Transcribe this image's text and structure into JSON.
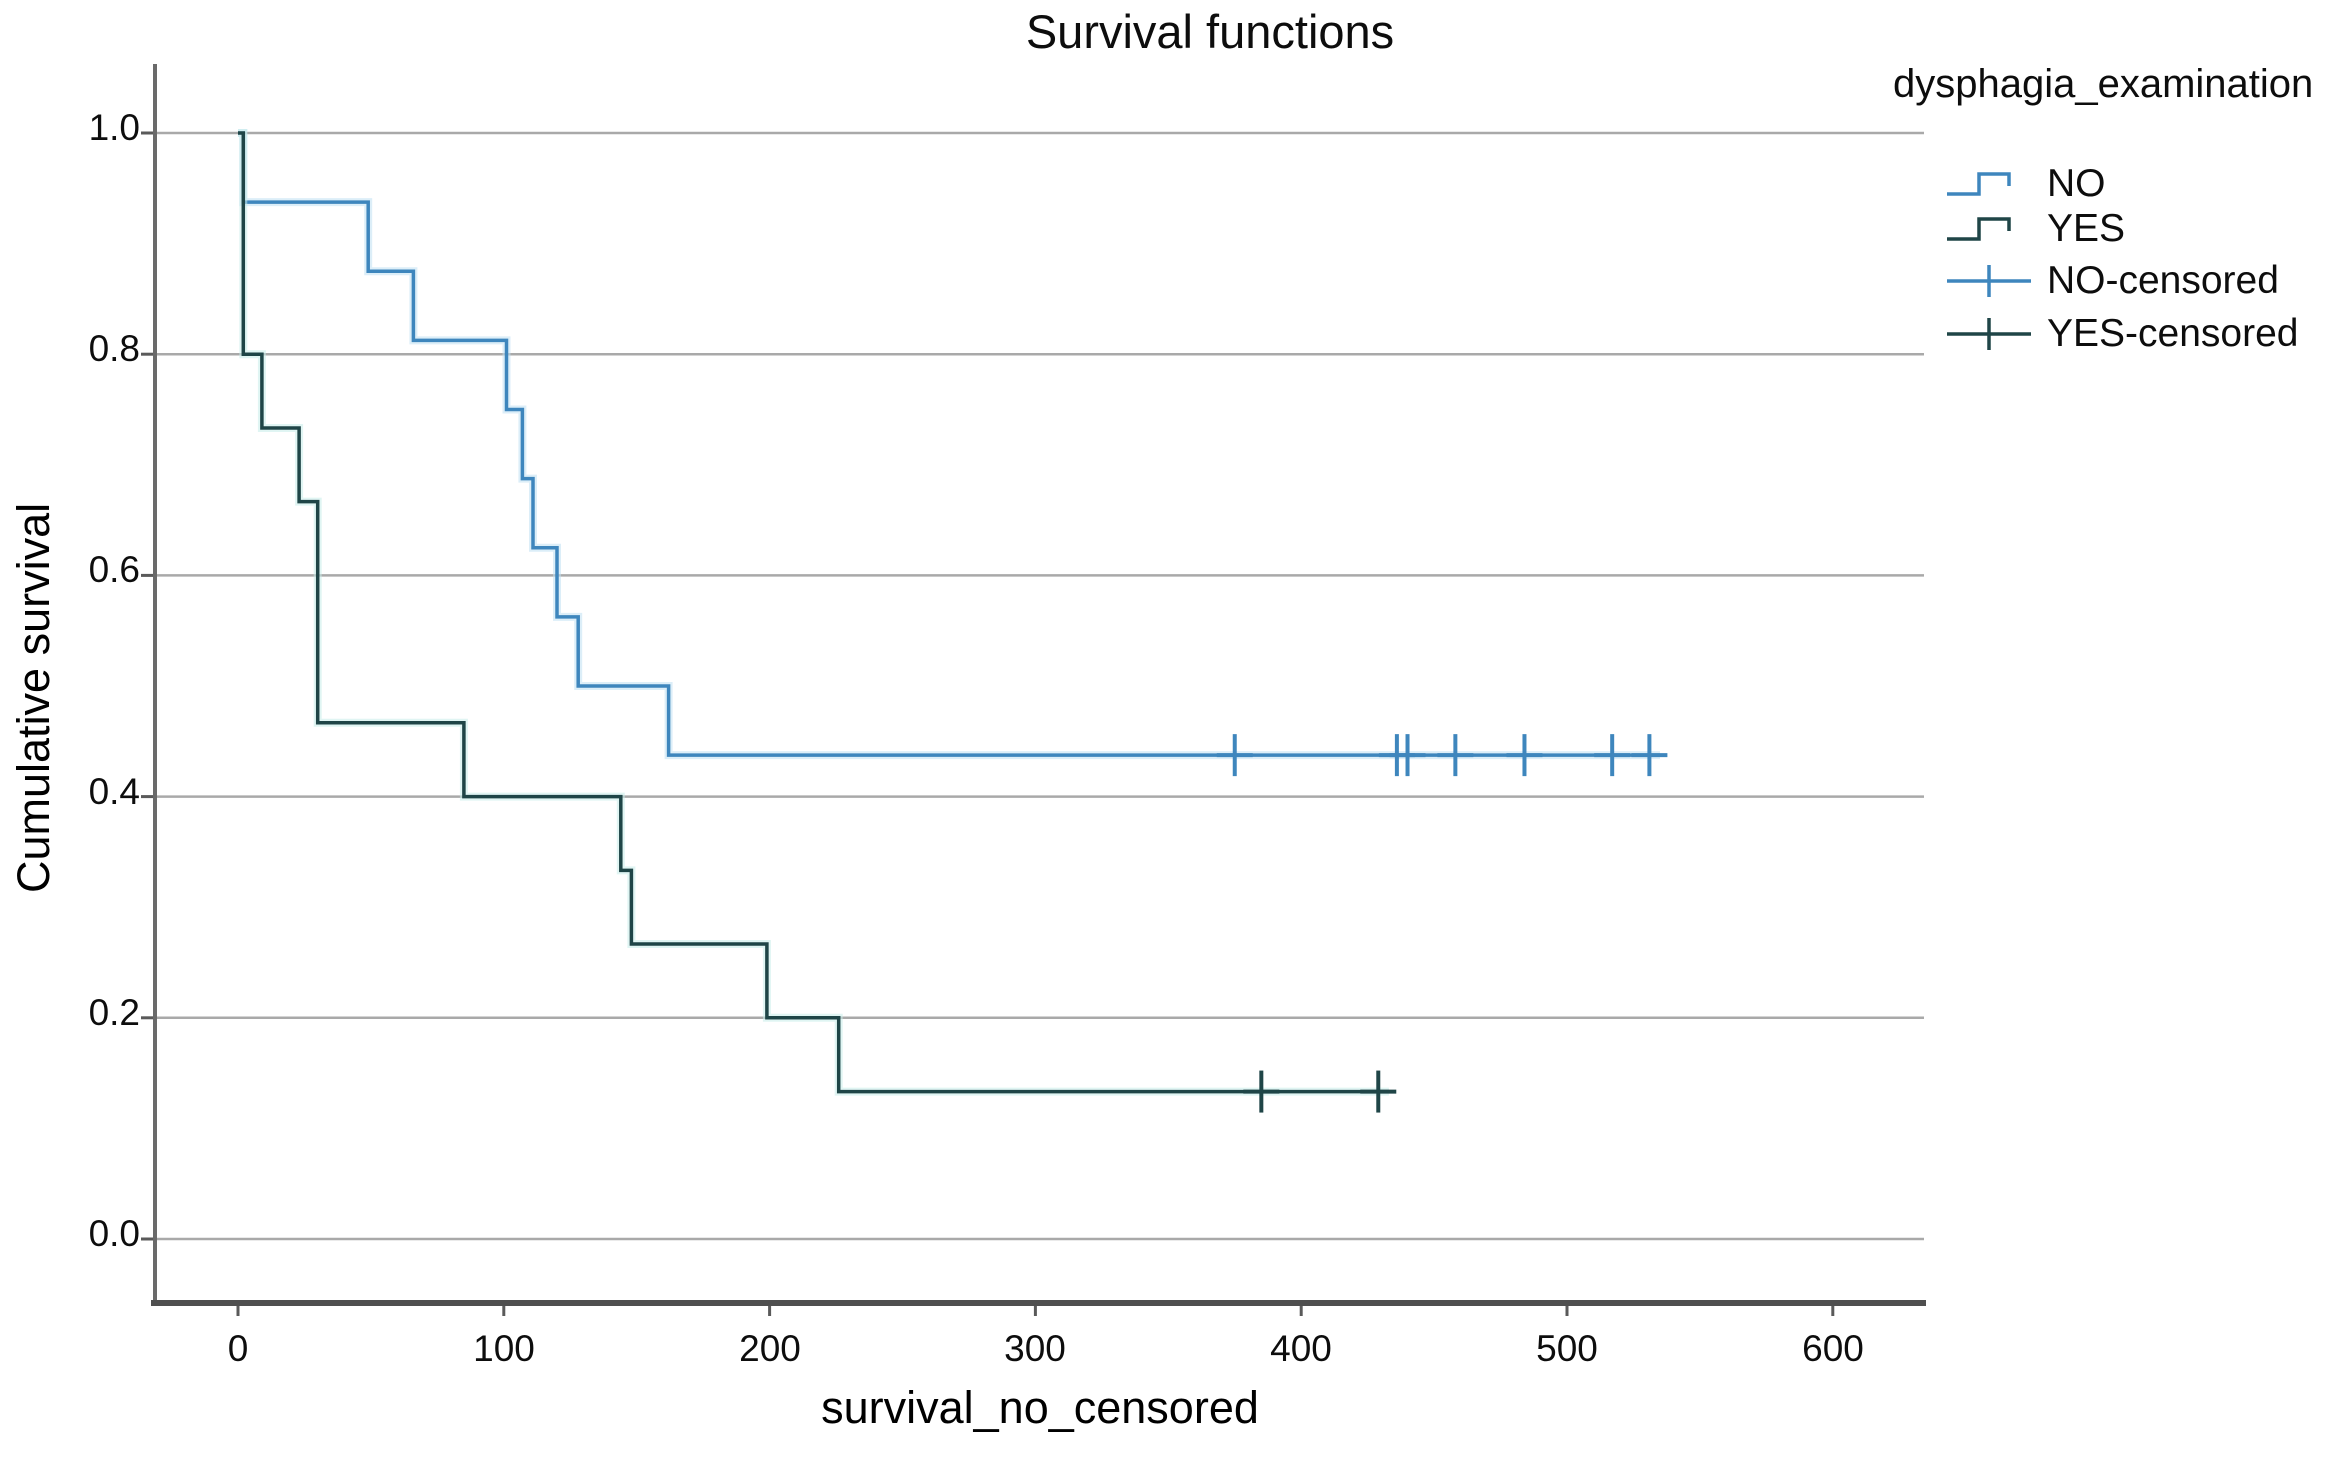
{
  "title": "Survival functions",
  "axes": {
    "xlabel": "survival_no_censored",
    "ylabel": "Cumulative survival",
    "x_tick_labels": [
      "0",
      "100",
      "200",
      "300",
      "400",
      "500",
      "600"
    ],
    "y_tick_labels": [
      "1.0",
      "0.8",
      "0.6",
      "0.4",
      "0.2",
      "0.0"
    ]
  },
  "legend": {
    "title": "dysphagia_examination",
    "entries": [
      {
        "label": "NO",
        "type": "step-line",
        "color": "#3e86bd"
      },
      {
        "label": "YES",
        "type": "step-line",
        "color": "#1f4547"
      },
      {
        "label": "NO-censored",
        "type": "censor-plus",
        "color": "#3e86bd"
      },
      {
        "label": "YES-censored",
        "type": "censor-plus",
        "color": "#1f4547"
      }
    ]
  },
  "chart_data": {
    "type": "line",
    "subtype": "kaplan_meier_step",
    "title": "Survival functions",
    "xlabel": "survival_no_censored",
    "ylabel": "Cumulative survival",
    "x_ticks": [
      0,
      100,
      200,
      300,
      400,
      500,
      600
    ],
    "y_ticks": [
      0,
      0.2,
      0.4,
      0.6,
      0.8,
      1.0
    ],
    "xlim": [
      -31,
      635
    ],
    "ylim": [
      -0.06,
      1.1
    ],
    "grid": "horizontal-only",
    "grid_color": "#a9a9a9",
    "axis_color": "#5a5a5a",
    "legend_position": "top-right",
    "group_variable": "dysphagia_examination",
    "series": [
      {
        "name": "NO",
        "color": "#3e86bd",
        "halo": "#bfe0f2",
        "points": [
          [
            0,
            1.0
          ],
          [
            2,
            1.0
          ],
          [
            2,
            0.9375
          ],
          [
            49,
            0.9375
          ],
          [
            49,
            0.875
          ],
          [
            66,
            0.875
          ],
          [
            66,
            0.8125
          ],
          [
            101,
            0.8125
          ],
          [
            101,
            0.75
          ],
          [
            107,
            0.75
          ],
          [
            107,
            0.6875
          ],
          [
            111,
            0.6875
          ],
          [
            111,
            0.625
          ],
          [
            120,
            0.625
          ],
          [
            120,
            0.5625
          ],
          [
            128,
            0.5625
          ],
          [
            128,
            0.5
          ],
          [
            162,
            0.5
          ],
          [
            162,
            0.4375
          ],
          [
            535,
            0.4375
          ]
        ],
        "censored": [
          [
            375,
            0.4375
          ],
          [
            436,
            0.4375
          ],
          [
            440,
            0.4375
          ],
          [
            458,
            0.4375
          ],
          [
            484,
            0.4375
          ],
          [
            517,
            0.4375
          ],
          [
            531,
            0.4375
          ]
        ]
      },
      {
        "name": "YES",
        "color": "#1f4547",
        "halo": "#c6ece9",
        "points": [
          [
            0,
            1.0
          ],
          [
            2,
            1.0
          ],
          [
            2,
            0.8
          ],
          [
            9,
            0.8
          ],
          [
            9,
            0.7333
          ],
          [
            23,
            0.7333
          ],
          [
            23,
            0.6667
          ],
          [
            30,
            0.6667
          ],
          [
            30,
            0.4667
          ],
          [
            85,
            0.4667
          ],
          [
            85,
            0.4
          ],
          [
            144,
            0.4
          ],
          [
            144,
            0.3333
          ],
          [
            148,
            0.3333
          ],
          [
            148,
            0.2667
          ],
          [
            199,
            0.2667
          ],
          [
            199,
            0.2
          ],
          [
            226,
            0.2
          ],
          [
            226,
            0.1333
          ],
          [
            433,
            0.1333
          ]
        ],
        "censored": [
          [
            385,
            0.1333
          ],
          [
            429,
            0.1333
          ]
        ]
      }
    ]
  }
}
